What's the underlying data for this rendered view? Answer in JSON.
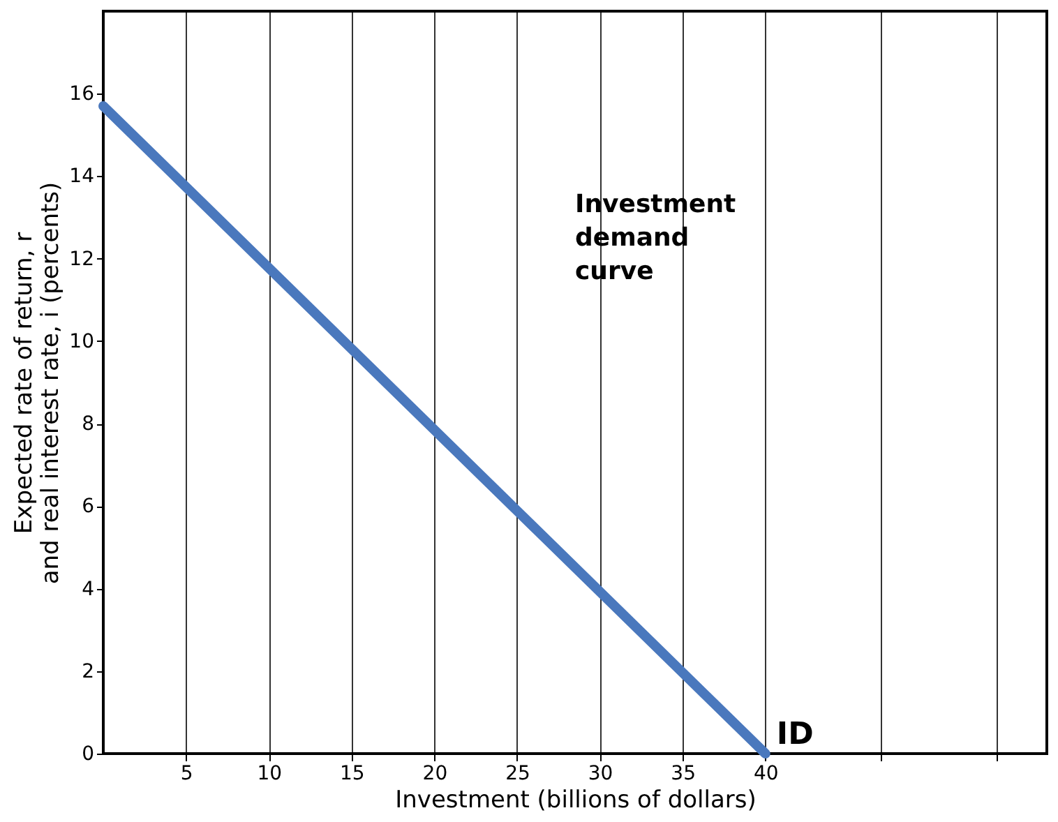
{
  "chart_data": {
    "type": "line",
    "xlabel": "Investment (billions of dollars)",
    "ylabel": "Expected rate of return, r\nand real interest rate, i (percents)",
    "x": [
      0,
      40
    ],
    "series": [
      {
        "name": "ID",
        "color": "#4a78bd",
        "values": [
          15.7,
          0
        ]
      }
    ],
    "xlim": [
      0,
      57
    ],
    "xticks": [
      5,
      10,
      15,
      20,
      25,
      30,
      35,
      40,
      {
        "value": 47,
        "label": null
      },
      {
        "value": 54,
        "label": null
      }
    ],
    "ylim": [
      0,
      18
    ],
    "yticks": [
      0,
      2,
      4,
      6,
      8,
      10,
      12,
      14,
      16
    ],
    "grid": "x",
    "legend": false,
    "line_style": "solid",
    "annotations": [
      "Investment\ndemand\ncurve"
    ]
  }
}
